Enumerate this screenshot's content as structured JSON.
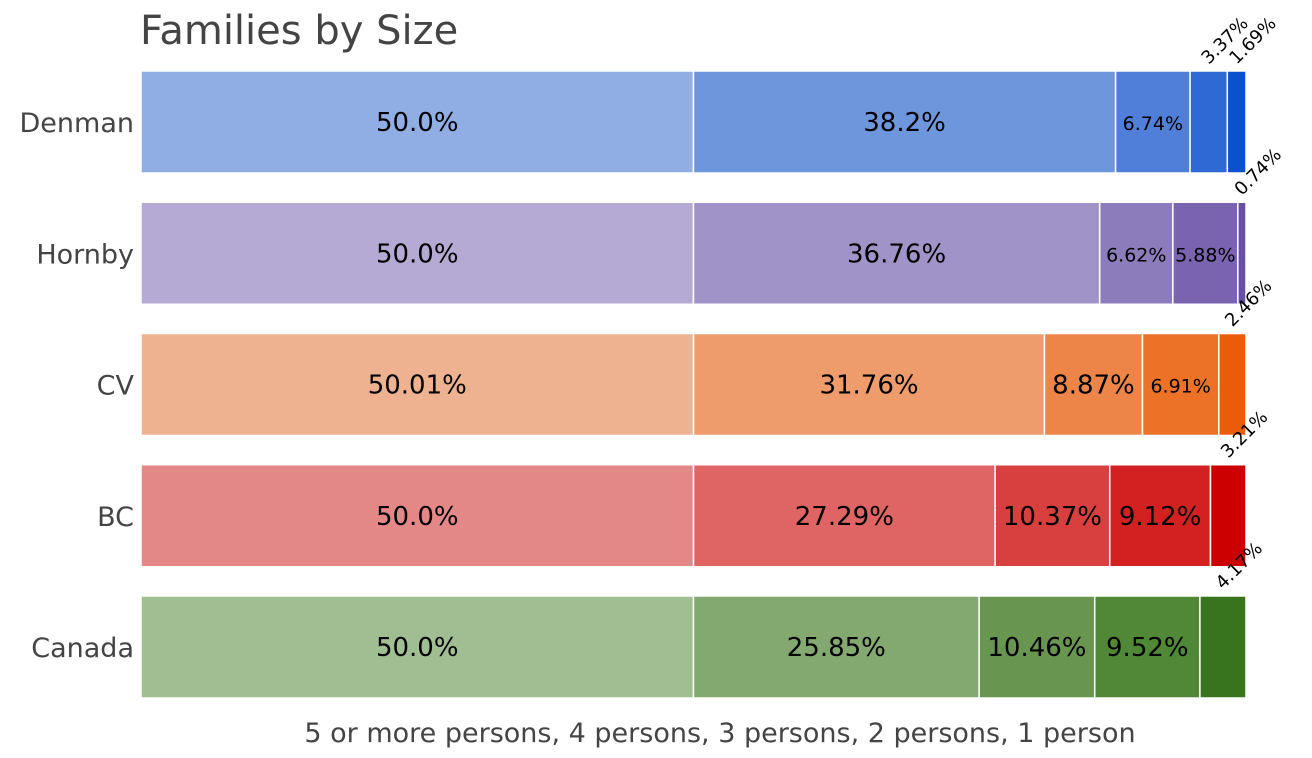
{
  "chart_data": {
    "type": "bar",
    "orientation": "horizontal",
    "stacked": true,
    "title": "Families by Size",
    "xlabel": "5 or more persons, 4 persons, 3 persons, 2 persons, 1 person",
    "ylabel": "",
    "grid": false,
    "xlim": [
      0,
      100
    ],
    "categories": [
      "Denman",
      "Hornby",
      "CV",
      "BC",
      "Canada"
    ],
    "rows": [
      {
        "name": "Denman",
        "values": [
          50.0,
          38.2,
          6.74,
          3.37,
          1.69
        ],
        "labels": [
          "50.0%",
          "38.2%",
          "6.74%",
          "3.37%",
          "1.69%"
        ],
        "colors": [
          "#90aee4",
          "#6e96dd",
          "#4f7fd8",
          "#2f69d3",
          "#0b50cc"
        ]
      },
      {
        "name": "Hornby",
        "values": [
          50.0,
          36.76,
          6.62,
          5.88,
          0.74
        ],
        "labels": [
          "50.0%",
          "36.76%",
          "6.62%",
          "5.88%",
          "0.74%"
        ],
        "colors": [
          "#b4aad4",
          "#a093c7",
          "#8c7cbb",
          "#7a64b0",
          "#6a4fa6"
        ]
      },
      {
        "name": "CV",
        "values": [
          50.01,
          31.76,
          8.87,
          6.91,
          2.46
        ],
        "labels": [
          "50.01%",
          "31.76%",
          "8.87%",
          "6.91%",
          "2.46%"
        ],
        "colors": [
          "#eeb290",
          "#ee9c6b",
          "#ed8549",
          "#ec7228",
          "#eb5c0a"
        ]
      },
      {
        "name": "BC",
        "values": [
          50.0,
          27.29,
          10.37,
          9.12,
          3.21
        ],
        "labels": [
          "50.0%",
          "27.29%",
          "10.37%",
          "9.12%",
          "3.21%"
        ],
        "colors": [
          "#e38887",
          "#de6564",
          "#d84040",
          "#d32020",
          "#cc0000"
        ]
      },
      {
        "name": "Canada",
        "values": [
          50.0,
          25.85,
          10.46,
          9.52,
          4.17
        ],
        "labels": [
          "50.0%",
          "25.85%",
          "10.46%",
          "9.52%",
          "4.17%"
        ],
        "colors": [
          "#a0be92",
          "#83a970",
          "#689651",
          "#508838",
          "#37741d"
        ]
      }
    ]
  }
}
